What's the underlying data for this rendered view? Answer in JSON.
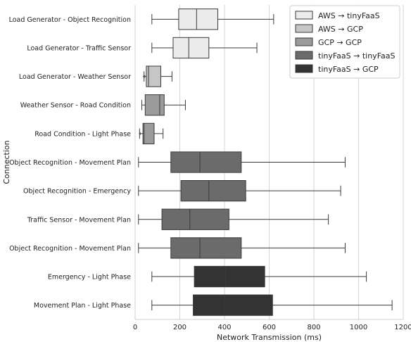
{
  "chart_data": {
    "type": "boxplot",
    "orientation": "horizontal",
    "xlabel": "Network Transmission (ms)",
    "ylabel": "Connection",
    "xlim": [
      0,
      1200
    ],
    "xticks": [
      0,
      200,
      400,
      600,
      800,
      1000,
      1200
    ],
    "grid": "vertical",
    "legend_position": "top-right",
    "groups": [
      {
        "name": "AWS → tinyFaaS",
        "color": "#ebebeb"
      },
      {
        "name": "AWS → GCP",
        "color": "#c6c6c6"
      },
      {
        "name": "GCP → GCP",
        "color": "#9b9b9b"
      },
      {
        "name": "tinyFaaS → tinyFaaS",
        "color": "#6b6b6b"
      },
      {
        "name": "tinyFaaS → GCP",
        "color": "#333333"
      }
    ],
    "boxes": [
      {
        "label": "Load Generator - Object Recognition",
        "group": 0,
        "whisker_low": 75,
        "q1": 195,
        "median": 275,
        "q3": 370,
        "whisker_high": 620,
        "outliers": []
      },
      {
        "label": "Load Generator - Traffic Sensor",
        "group": 0,
        "whisker_low": 75,
        "q1": 170,
        "median": 240,
        "q3": 330,
        "whisker_high": 545,
        "outliers": []
      },
      {
        "label": "Load Generator - Weather Sensor",
        "group": 1,
        "whisker_low": 40,
        "q1": 50,
        "median": 60,
        "q3": 115,
        "whisker_high": 165,
        "outliers": [
          40,
          42
        ]
      },
      {
        "label": "Weather Sensor - Road Condition",
        "group": 2,
        "whisker_low": 30,
        "q1": 45,
        "median": 110,
        "q3": 130,
        "whisker_high": 225,
        "outliers": []
      },
      {
        "label": "Road Condition - Light Phase",
        "group": 2,
        "whisker_low": 20,
        "q1": 35,
        "median": 40,
        "q3": 85,
        "whisker_high": 125,
        "outliers": [
          22
        ]
      },
      {
        "label": "Object Recognition - Movement Plan",
        "group": 3,
        "whisker_low": 15,
        "q1": 160,
        "median": 290,
        "q3": 475,
        "whisker_high": 940,
        "outliers": []
      },
      {
        "label": "Object Recognition - Emergency",
        "group": 3,
        "whisker_low": 15,
        "q1": 205,
        "median": 330,
        "q3": 495,
        "whisker_high": 920,
        "outliers": []
      },
      {
        "label": "Traffic Sensor - Movement Plan",
        "group": 3,
        "whisker_low": 15,
        "q1": 120,
        "median": 245,
        "q3": 420,
        "whisker_high": 865,
        "outliers": []
      },
      {
        "label": "Object Recognition - Movement Plan",
        "group": 3,
        "whisker_low": 15,
        "q1": 160,
        "median": 290,
        "q3": 475,
        "whisker_high": 940,
        "outliers": []
      },
      {
        "label": "Emergency - Light Phase",
        "group": 4,
        "whisker_low": 75,
        "q1": 265,
        "median": 405,
        "q3": 580,
        "whisker_high": 1035,
        "outliers": []
      },
      {
        "label": "Movement Plan - Light Phase",
        "group": 4,
        "whisker_low": 75,
        "q1": 260,
        "median": 400,
        "q3": 615,
        "whisker_high": 1150,
        "outliers": []
      }
    ]
  }
}
